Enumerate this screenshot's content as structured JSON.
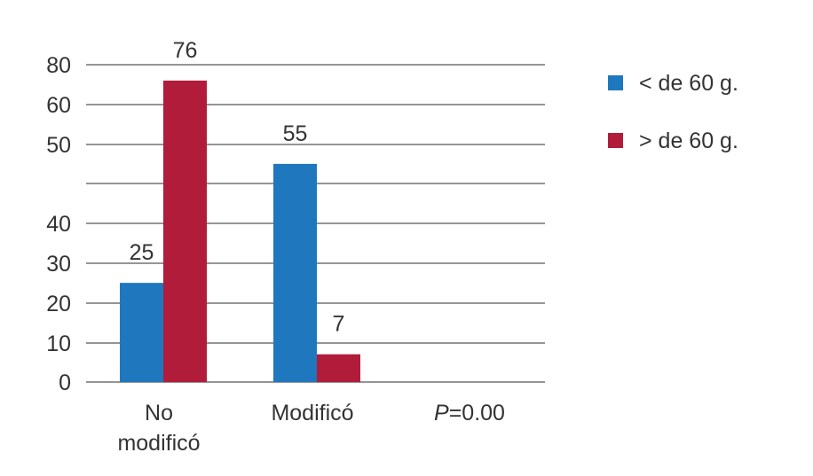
{
  "chart_data": {
    "type": "bar",
    "categories": [
      [
        "No",
        "modificó"
      ],
      [
        "Modificó"
      ]
    ],
    "series": [
      {
        "name": "< de 60 g.",
        "color": "#1f77be",
        "values": [
          25,
          55
        ]
      },
      {
        "name": "> de 60 g.",
        "color": "#b01c3a",
        "values": [
          76,
          7
        ]
      }
    ],
    "y_ticks": [
      "0",
      "10",
      "20",
      "30",
      "40",
      "50",
      "60",
      "80"
    ],
    "annotation": {
      "italic": "P",
      "rest": "=0.00"
    },
    "legend_position": "right",
    "grid": true
  }
}
